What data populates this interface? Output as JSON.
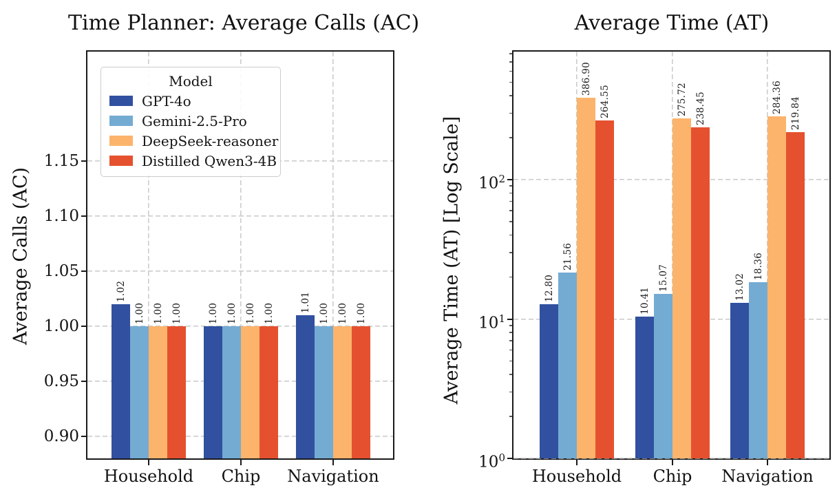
{
  "figure": {
    "background": "#ffffff",
    "text_color": "#141414",
    "grid_color": "#cccccc",
    "frame_color": "#1a1a1a"
  },
  "chart_data": [
    {
      "type": "bar",
      "title": "Time Planner: Average Calls (AC)",
      "ylabel": "Average Calls (AC)",
      "xlabel": "",
      "categories": [
        "Household",
        "Chip",
        "Navigation"
      ],
      "series": [
        {
          "name": "GPT-4o",
          "color": "#3150a0",
          "values": [
            1.02,
            1.0,
            1.01
          ]
        },
        {
          "name": "Gemini-2.5-Pro",
          "color": "#74abd2",
          "values": [
            1.0,
            1.0,
            1.0
          ]
        },
        {
          "name": "DeepSeek-reasoner",
          "color": "#fcb46c",
          "values": [
            1.0,
            1.0,
            1.0
          ]
        },
        {
          "name": "Distilled Qwen3-4B",
          "color": "#e5512f",
          "values": [
            1.0,
            1.0,
            1.0
          ]
        }
      ],
      "bar_value_labels": [
        [
          "1.02",
          "1.00",
          "1.01"
        ],
        [
          "1.00",
          "1.00",
          "1.00"
        ],
        [
          "1.00",
          "1.00",
          "1.00"
        ],
        [
          "1.00",
          "1.00",
          "1.00"
        ]
      ],
      "y_axis": {
        "scale": "linear",
        "min": 0.88,
        "max": 1.249,
        "ticks": [
          0.9,
          0.95,
          1.0,
          1.05,
          1.1,
          1.15
        ],
        "tick_labels": [
          "0.90",
          "0.95",
          "1.00",
          "1.05",
          "1.10",
          "1.15"
        ]
      },
      "grid": "dashed",
      "legend": {
        "title": "Model",
        "position": "upper left",
        "entries": [
          "GPT-4o",
          "Gemini-2.5-Pro",
          "DeepSeek-reasoner",
          "Distilled Qwen3-4B"
        ]
      }
    },
    {
      "type": "bar",
      "title": "Average Time (AT)",
      "ylabel": "Average Time (AT) [Log Scale]",
      "xlabel": "",
      "categories": [
        "Household",
        "Chip",
        "Navigation"
      ],
      "series": [
        {
          "name": "GPT-4o",
          "color": "#3150a0",
          "values": [
            12.8,
            10.41,
            13.02
          ]
        },
        {
          "name": "Gemini-2.5-Pro",
          "color": "#74abd2",
          "values": [
            21.56,
            15.07,
            18.36
          ]
        },
        {
          "name": "DeepSeek-reasoner",
          "color": "#fcb46c",
          "values": [
            386.9,
            275.72,
            284.36
          ]
        },
        {
          "name": "Distilled Qwen3-4B",
          "color": "#e5512f",
          "values": [
            264.55,
            238.45,
            219.84
          ]
        }
      ],
      "bar_value_labels": [
        [
          "12.80",
          "10.41",
          "13.02"
        ],
        [
          "21.56",
          "15.07",
          "18.36"
        ],
        [
          "386.90",
          "275.72",
          "284.36"
        ],
        [
          "264.55",
          "238.45",
          "219.84"
        ]
      ],
      "y_axis": {
        "scale": "log",
        "min": 1,
        "max": 836,
        "tick_exponents": [
          0,
          1,
          2
        ],
        "tick_base": "10"
      },
      "grid": "dashed",
      "legend": null
    }
  ]
}
